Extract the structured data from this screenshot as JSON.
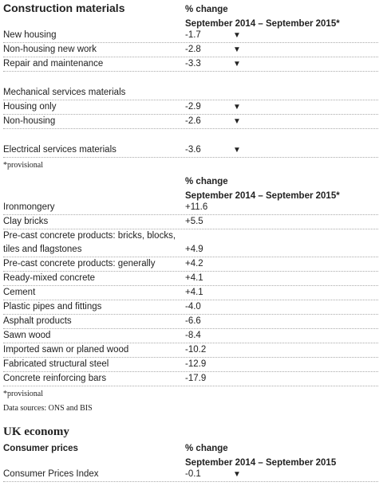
{
  "section1": {
    "title": "Construction materials",
    "change_label": "% change",
    "period": "September 2014 – September 2015*",
    "groups": [
      [
        {
          "label": "New housing",
          "value": "-1.7",
          "arrow": "▼"
        },
        {
          "label": "Non-housing new work",
          "value": "-2.8",
          "arrow": "▼"
        },
        {
          "label": "Repair and maintenance",
          "value": "-3.3",
          "arrow": "▼"
        }
      ],
      [
        {
          "label": "Mechanical services materials"
        },
        {
          "label": "Housing only",
          "value": "-2.9",
          "arrow": "▼"
        },
        {
          "label": "Non-housing",
          "value": "-2.6",
          "arrow": "▼"
        }
      ],
      [
        {
          "label": "Electrical services materials",
          "value": "-3.6",
          "arrow": "▼"
        }
      ]
    ],
    "note": "*provisional"
  },
  "section2": {
    "change_label": "% change",
    "period": "September 2014 – September 2015*",
    "rows": [
      {
        "label": "Ironmongery",
        "value": "+11.6"
      },
      {
        "label": "Clay bricks",
        "value": "+5.5"
      },
      {
        "label": "Pre-cast concrete products: bricks, blocks, tiles and flagstones",
        "value": "+4.9"
      },
      {
        "label": "Pre-cast concrete products: generally",
        "value": "+4.2"
      },
      {
        "label": "Ready-mixed concrete",
        "value": "+4.1"
      },
      {
        "label": "Cement",
        "value": "+4.1"
      },
      {
        "label": "Plastic pipes and fittings",
        "value": "-4.0"
      },
      {
        "label": "Asphalt products",
        "value": "-6.6"
      },
      {
        "label": "Sawn wood",
        "value": "-8.4"
      },
      {
        "label": "Imported sawn or planed wood",
        "value": "-10.2"
      },
      {
        "label": "Fabricated structural steel",
        "value": "-12.9"
      },
      {
        "label": "Concrete reinforcing bars",
        "value": "-17.9"
      }
    ],
    "note": "*provisional",
    "sources": "Data sources:  ONS and BIS"
  },
  "section3": {
    "title": "UK economy",
    "subtitle": "Consumer prices",
    "change_label": "% change",
    "period": "September 2014 – September 2015",
    "rows": [
      {
        "label": "Consumer Prices Index",
        "value": "-0.1",
        "arrow": "▼"
      }
    ]
  }
}
